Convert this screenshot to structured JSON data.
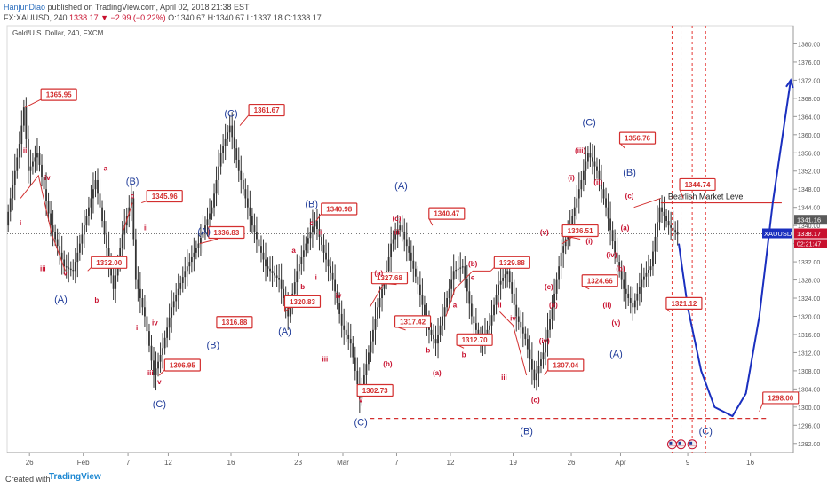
{
  "header": {
    "author": "HanjunDiao",
    "published_text": "published on TradingView.com, April 02, 2018 21:38 EST",
    "symbol": "FX:XAUUSD, 240",
    "last": "1338.17",
    "change": "−2.99 (−0.22%)",
    "ohlc": "O:1340.67 H:1340.67 L:1337.18 C:1338.17"
  },
  "footer": {
    "created_with": "Created with",
    "brand": "TradingView"
  },
  "colors": {
    "candle": "#333333",
    "wave_label": "#c8102e",
    "degree_label": "#1f3b99",
    "projection": "#1a2fbf",
    "box_border": "#d32f2f"
  },
  "chart_data": {
    "type": "line",
    "instrument_title": "Gold/U.S. Dollar, 240, FXCM",
    "ylim": [
      1290,
      1384
    ],
    "y_ticks": [
      1292.0,
      1296.0,
      1300.0,
      1304.0,
      1308.0,
      1312.0,
      1316.0,
      1320.0,
      1324.0,
      1328.0,
      1332.0,
      1336.0,
      1340.0,
      1344.0,
      1348.0,
      1352.0,
      1356.0,
      1360.0,
      1364.0,
      1368.0,
      1372.0,
      1376.0,
      1380.0
    ],
    "x_ticks": [
      "26",
      "Feb",
      "7",
      "12",
      "16",
      "23",
      "Mar",
      "7",
      "12",
      "19",
      "26",
      "Apr",
      "9",
      "16"
    ],
    "x_tick_idx": [
      5,
      17,
      27,
      36,
      50,
      65,
      75,
      87,
      99,
      113,
      126,
      137,
      152,
      166
    ],
    "price_path": [
      [
        0,
        1340
      ],
      [
        3,
        1358
      ],
      [
        4,
        1366
      ],
      [
        5,
        1352
      ],
      [
        7,
        1356
      ],
      [
        10,
        1340
      ],
      [
        13,
        1331
      ],
      [
        15,
        1330
      ],
      [
        18,
        1342
      ],
      [
        20,
        1350
      ],
      [
        22,
        1338
      ],
      [
        24,
        1326
      ],
      [
        26,
        1338
      ],
      [
        28,
        1346
      ],
      [
        29,
        1328
      ],
      [
        31,
        1320
      ],
      [
        33,
        1307
      ],
      [
        35,
        1313
      ],
      [
        37,
        1322
      ],
      [
        40,
        1330
      ],
      [
        43,
        1336
      ],
      [
        46,
        1344
      ],
      [
        48,
        1356
      ],
      [
        50,
        1362
      ],
      [
        52,
        1352
      ],
      [
        55,
        1340
      ],
      [
        58,
        1331
      ],
      [
        61,
        1328
      ],
      [
        63,
        1320
      ],
      [
        65,
        1330
      ],
      [
        67,
        1336
      ],
      [
        69,
        1341
      ],
      [
        71,
        1334
      ],
      [
        73,
        1328
      ],
      [
        75,
        1318
      ],
      [
        77,
        1314
      ],
      [
        79,
        1302
      ],
      [
        81,
        1312
      ],
      [
        83,
        1322
      ],
      [
        85,
        1330
      ],
      [
        86,
        1336
      ],
      [
        88,
        1340
      ],
      [
        90,
        1334
      ],
      [
        92,
        1327
      ],
      [
        94,
        1318
      ],
      [
        96,
        1314
      ],
      [
        98,
        1322
      ],
      [
        100,
        1330
      ],
      [
        102,
        1331
      ],
      [
        104,
        1320
      ],
      [
        106,
        1314
      ],
      [
        108,
        1318
      ],
      [
        110,
        1327
      ],
      [
        112,
        1330
      ],
      [
        114,
        1320
      ],
      [
        116,
        1315
      ],
      [
        118,
        1306
      ],
      [
        120,
        1312
      ],
      [
        122,
        1322
      ],
      [
        124,
        1334
      ],
      [
        126,
        1340
      ],
      [
        128,
        1348
      ],
      [
        130,
        1356
      ],
      [
        132,
        1352
      ],
      [
        134,
        1344
      ],
      [
        136,
        1334
      ],
      [
        138,
        1326
      ],
      [
        140,
        1322
      ],
      [
        142,
        1328
      ],
      [
        144,
        1331
      ],
      [
        146,
        1344
      ],
      [
        148,
        1340
      ],
      [
        150,
        1338
      ]
    ],
    "projection_path": [
      [
        150,
        1336
      ],
      [
        152,
        1322
      ],
      [
        155,
        1308
      ],
      [
        158,
        1300
      ],
      [
        162,
        1298
      ],
      [
        165,
        1303
      ],
      [
        168,
        1320
      ],
      [
        171,
        1345
      ],
      [
        175,
        1372
      ]
    ],
    "current_price_label": "1338.17",
    "current_price_value": 1338.17,
    "symbol_label": "XAUUSD",
    "time_to_close": "02:21:47",
    "level_label": "1341.16",
    "level_value": 1341.16,
    "bearish_level_text": "Bearlish Market Level",
    "bearish_level_value": 1345,
    "bearish_level_range": [
      146,
      173
    ],
    "support_level_value": 1297.5,
    "support_level_range": [
      81,
      170
    ],
    "vertical_marker_idx": [
      148.5,
      150.5,
      153,
      156
    ],
    "price_boxes": [
      {
        "label": "1365.95",
        "i": 4,
        "v": 1366,
        "dx": 18,
        "dy": -15
      },
      {
        "label": "1332.00",
        "i": 18,
        "v": 1330,
        "dx": 4,
        "dy": -10
      },
      {
        "label": "1345.96",
        "i": 30,
        "v": 1345,
        "dx": 6,
        "dy": -8
      },
      {
        "label": "1306.95",
        "i": 34,
        "v": 1307,
        "dx": 6,
        "dy": -12
      },
      {
        "label": "1336.83",
        "i": 47,
        "v": 1337,
        "dx": -10,
        "dy": -8
      },
      {
        "label": "1316.88",
        "i": 48,
        "v": 1318,
        "dx": -6,
        "dy": -4
      },
      {
        "label": "1361.67",
        "i": 52,
        "v": 1362,
        "dx": 10,
        "dy": -18
      },
      {
        "label": "1320.83",
        "i": 62,
        "v": 1321,
        "dx": 0,
        "dy": -12
      },
      {
        "label": "1340.98",
        "i": 69,
        "v": 1341,
        "dx": 6,
        "dy": -14
      },
      {
        "label": "1302.73",
        "i": 79,
        "v": 1303,
        "dx": -4,
        "dy": -4
      },
      {
        "label": "1327.68",
        "i": 87,
        "v": 1327,
        "dx": -28,
        "dy": -8
      },
      {
        "label": "1317.42",
        "i": 89,
        "v": 1317,
        "dx": -12,
        "dy": -10
      },
      {
        "label": "1340.47",
        "i": 95,
        "v": 1340,
        "dx": -4,
        "dy": -14
      },
      {
        "label": "1312.70",
        "i": 102,
        "v": 1313,
        "dx": -8,
        "dy": -10
      },
      {
        "label": "1329.88",
        "i": 108,
        "v": 1330,
        "dx": 4,
        "dy": -10
      },
      {
        "label": "1307.04",
        "i": 120,
        "v": 1307,
        "dx": 4,
        "dy": -12
      },
      {
        "label": "1336.51",
        "i": 128,
        "v": 1337,
        "dx": -20,
        "dy": -10
      },
      {
        "label": "1324.66",
        "i": 130,
        "v": 1326,
        "dx": -8,
        "dy": -10
      },
      {
        "label": "1356.76",
        "i": 138,
        "v": 1357,
        "dx": -6,
        "dy": -12
      },
      {
        "label": "1344.74",
        "i": 151,
        "v": 1346,
        "dx": -4,
        "dy": -16
      },
      {
        "label": "1321.12",
        "i": 148,
        "v": 1321,
        "dx": -4,
        "dy": -10
      },
      {
        "label": "1298.00",
        "i": 168,
        "v": 1299,
        "dx": 4,
        "dy": -16
      }
    ],
    "wave_labels": [
      {
        "t": "ii",
        "i": 4,
        "v": 1356,
        "deg": "w"
      },
      {
        "t": "i",
        "i": 3,
        "v": 1340,
        "deg": "w"
      },
      {
        "t": "iv",
        "i": 9,
        "v": 1350,
        "deg": "w"
      },
      {
        "t": "iii",
        "i": 8,
        "v": 1330,
        "deg": "w"
      },
      {
        "t": "v",
        "i": 13,
        "v": 1329,
        "deg": "w"
      },
      {
        "t": "(A)",
        "i": 12,
        "v": 1323,
        "deg": "d"
      },
      {
        "t": "a",
        "i": 22,
        "v": 1352,
        "deg": "w"
      },
      {
        "t": "b",
        "i": 20,
        "v": 1323,
        "deg": "w"
      },
      {
        "t": "(B)",
        "i": 28,
        "v": 1349,
        "deg": "d"
      },
      {
        "t": "c",
        "i": 28,
        "v": 1346,
        "deg": "w"
      },
      {
        "t": "ii",
        "i": 31,
        "v": 1339,
        "deg": "w"
      },
      {
        "t": "i",
        "i": 29,
        "v": 1317,
        "deg": "w"
      },
      {
        "t": "iv",
        "i": 33,
        "v": 1318,
        "deg": "w"
      },
      {
        "t": "iii",
        "i": 32,
        "v": 1307,
        "deg": "w"
      },
      {
        "t": "v",
        "i": 34,
        "v": 1305,
        "deg": "w"
      },
      {
        "t": "(C)",
        "i": 34,
        "v": 1300,
        "deg": "d"
      },
      {
        "t": "(A)",
        "i": 44,
        "v": 1338,
        "deg": "d"
      },
      {
        "t": "(B)",
        "i": 46,
        "v": 1313,
        "deg": "d"
      },
      {
        "t": "(C)",
        "i": 50,
        "v": 1364,
        "deg": "d"
      },
      {
        "t": "a",
        "i": 64,
        "v": 1334,
        "deg": "w"
      },
      {
        "t": "b",
        "i": 66,
        "v": 1326,
        "deg": "w"
      },
      {
        "t": "(A)",
        "i": 62,
        "v": 1316,
        "deg": "d"
      },
      {
        "t": "(B)",
        "i": 68,
        "v": 1344,
        "deg": "d"
      },
      {
        "t": "c",
        "i": 68,
        "v": 1340,
        "deg": "w"
      },
      {
        "t": "ii",
        "i": 70,
        "v": 1338,
        "deg": "w"
      },
      {
        "t": "i",
        "i": 69,
        "v": 1328,
        "deg": "w"
      },
      {
        "t": "iv",
        "i": 74,
        "v": 1324,
        "deg": "w"
      },
      {
        "t": "iii",
        "i": 71,
        "v": 1310,
        "deg": "w"
      },
      {
        "t": "v",
        "i": 79,
        "v": 1301,
        "deg": "w"
      },
      {
        "t": "(C)",
        "i": 79,
        "v": 1296,
        "deg": "d"
      },
      {
        "t": "(A)",
        "i": 88,
        "v": 1348,
        "deg": "d"
      },
      {
        "t": "(c)",
        "i": 87,
        "v": 1341,
        "deg": "w"
      },
      {
        "t": "iii",
        "i": 87,
        "v": 1338,
        "deg": "w"
      },
      {
        "t": "(a)",
        "i": 83,
        "v": 1329,
        "deg": "w"
      },
      {
        "t": "(b)",
        "i": 85,
        "v": 1309,
        "deg": "w"
      },
      {
        "t": "b",
        "i": 94,
        "v": 1312,
        "deg": "w"
      },
      {
        "t": "(a)",
        "i": 96,
        "v": 1307,
        "deg": "w"
      },
      {
        "t": "(b)",
        "i": 104,
        "v": 1331,
        "deg": "w"
      },
      {
        "t": "e",
        "i": 104,
        "v": 1328,
        "deg": "w"
      },
      {
        "t": "a",
        "i": 100,
        "v": 1322,
        "deg": "w"
      },
      {
        "t": "b",
        "i": 102,
        "v": 1311,
        "deg": "w"
      },
      {
        "t": "iv",
        "i": 113,
        "v": 1319,
        "deg": "w"
      },
      {
        "t": "ii",
        "i": 110,
        "v": 1322,
        "deg": "w"
      },
      {
        "t": "iii",
        "i": 111,
        "v": 1306,
        "deg": "w"
      },
      {
        "t": "(c)",
        "i": 118,
        "v": 1301,
        "deg": "w"
      },
      {
        "t": "(B)",
        "i": 116,
        "v": 1294,
        "deg": "d"
      },
      {
        "t": "(iv)",
        "i": 120,
        "v": 1314,
        "deg": "w"
      },
      {
        "t": "(e)",
        "i": 122,
        "v": 1322,
        "deg": "w"
      },
      {
        "t": "(c)",
        "i": 121,
        "v": 1326,
        "deg": "w"
      },
      {
        "t": "(v)",
        "i": 120,
        "v": 1338,
        "deg": "w"
      },
      {
        "t": "(iii)",
        "i": 128,
        "v": 1356,
        "deg": "w"
      },
      {
        "t": "(i)",
        "i": 126,
        "v": 1350,
        "deg": "w"
      },
      {
        "t": "(C)",
        "i": 130,
        "v": 1362,
        "deg": "d"
      },
      {
        "t": "(ii)",
        "i": 132,
        "v": 1349,
        "deg": "w"
      },
      {
        "t": "(i)",
        "i": 130,
        "v": 1336,
        "deg": "w"
      },
      {
        "t": "(B)",
        "i": 139,
        "v": 1351,
        "deg": "d"
      },
      {
        "t": "(c)",
        "i": 139,
        "v": 1346,
        "deg": "w"
      },
      {
        "t": "(a)",
        "i": 138,
        "v": 1339,
        "deg": "w"
      },
      {
        "t": "(b)",
        "i": 137,
        "v": 1330,
        "deg": "w"
      },
      {
        "t": "(iv)",
        "i": 135,
        "v": 1333,
        "deg": "w"
      },
      {
        "t": "(ii)",
        "i": 134,
        "v": 1322,
        "deg": "w"
      },
      {
        "t": "(v)",
        "i": 136,
        "v": 1318,
        "deg": "w"
      },
      {
        "t": "(A)",
        "i": 136,
        "v": 1311,
        "deg": "d"
      },
      {
        "t": "(C)",
        "i": 156,
        "v": 1294,
        "deg": "d"
      }
    ],
    "wave_lines": [
      [
        [
          3,
          1346
        ],
        [
          7,
          1351
        ],
        [
          10,
          1338
        ],
        [
          13,
          1330
        ]
      ],
      [
        [
          26,
          1339
        ],
        [
          28,
          1345
        ]
      ],
      [
        [
          43,
          1336
        ],
        [
          47,
          1337
        ]
      ],
      [
        [
          66,
          1324
        ],
        [
          62,
          1321
        ]
      ],
      [
        [
          81,
          1322
        ],
        [
          84,
          1327
        ],
        [
          87,
          1329
        ]
      ],
      [
        [
          98,
          1320
        ],
        [
          100,
          1326
        ],
        [
          104,
          1330
        ],
        [
          108,
          1330
        ]
      ],
      [
        [
          110,
          1321
        ],
        [
          113,
          1318
        ],
        [
          116,
          1307
        ]
      ],
      [
        [
          124,
          1336
        ],
        [
          127,
          1338
        ]
      ],
      [
        [
          140,
          1344
        ],
        [
          146,
          1346
        ]
      ]
    ],
    "events": [
      {
        "i": 148.5,
        "v": 1291.8
      },
      {
        "i": 150.5,
        "v": 1291.8
      },
      {
        "i": 153,
        "v": 1291.8
      }
    ],
    "xlabel": "",
    "ylabel": ""
  }
}
